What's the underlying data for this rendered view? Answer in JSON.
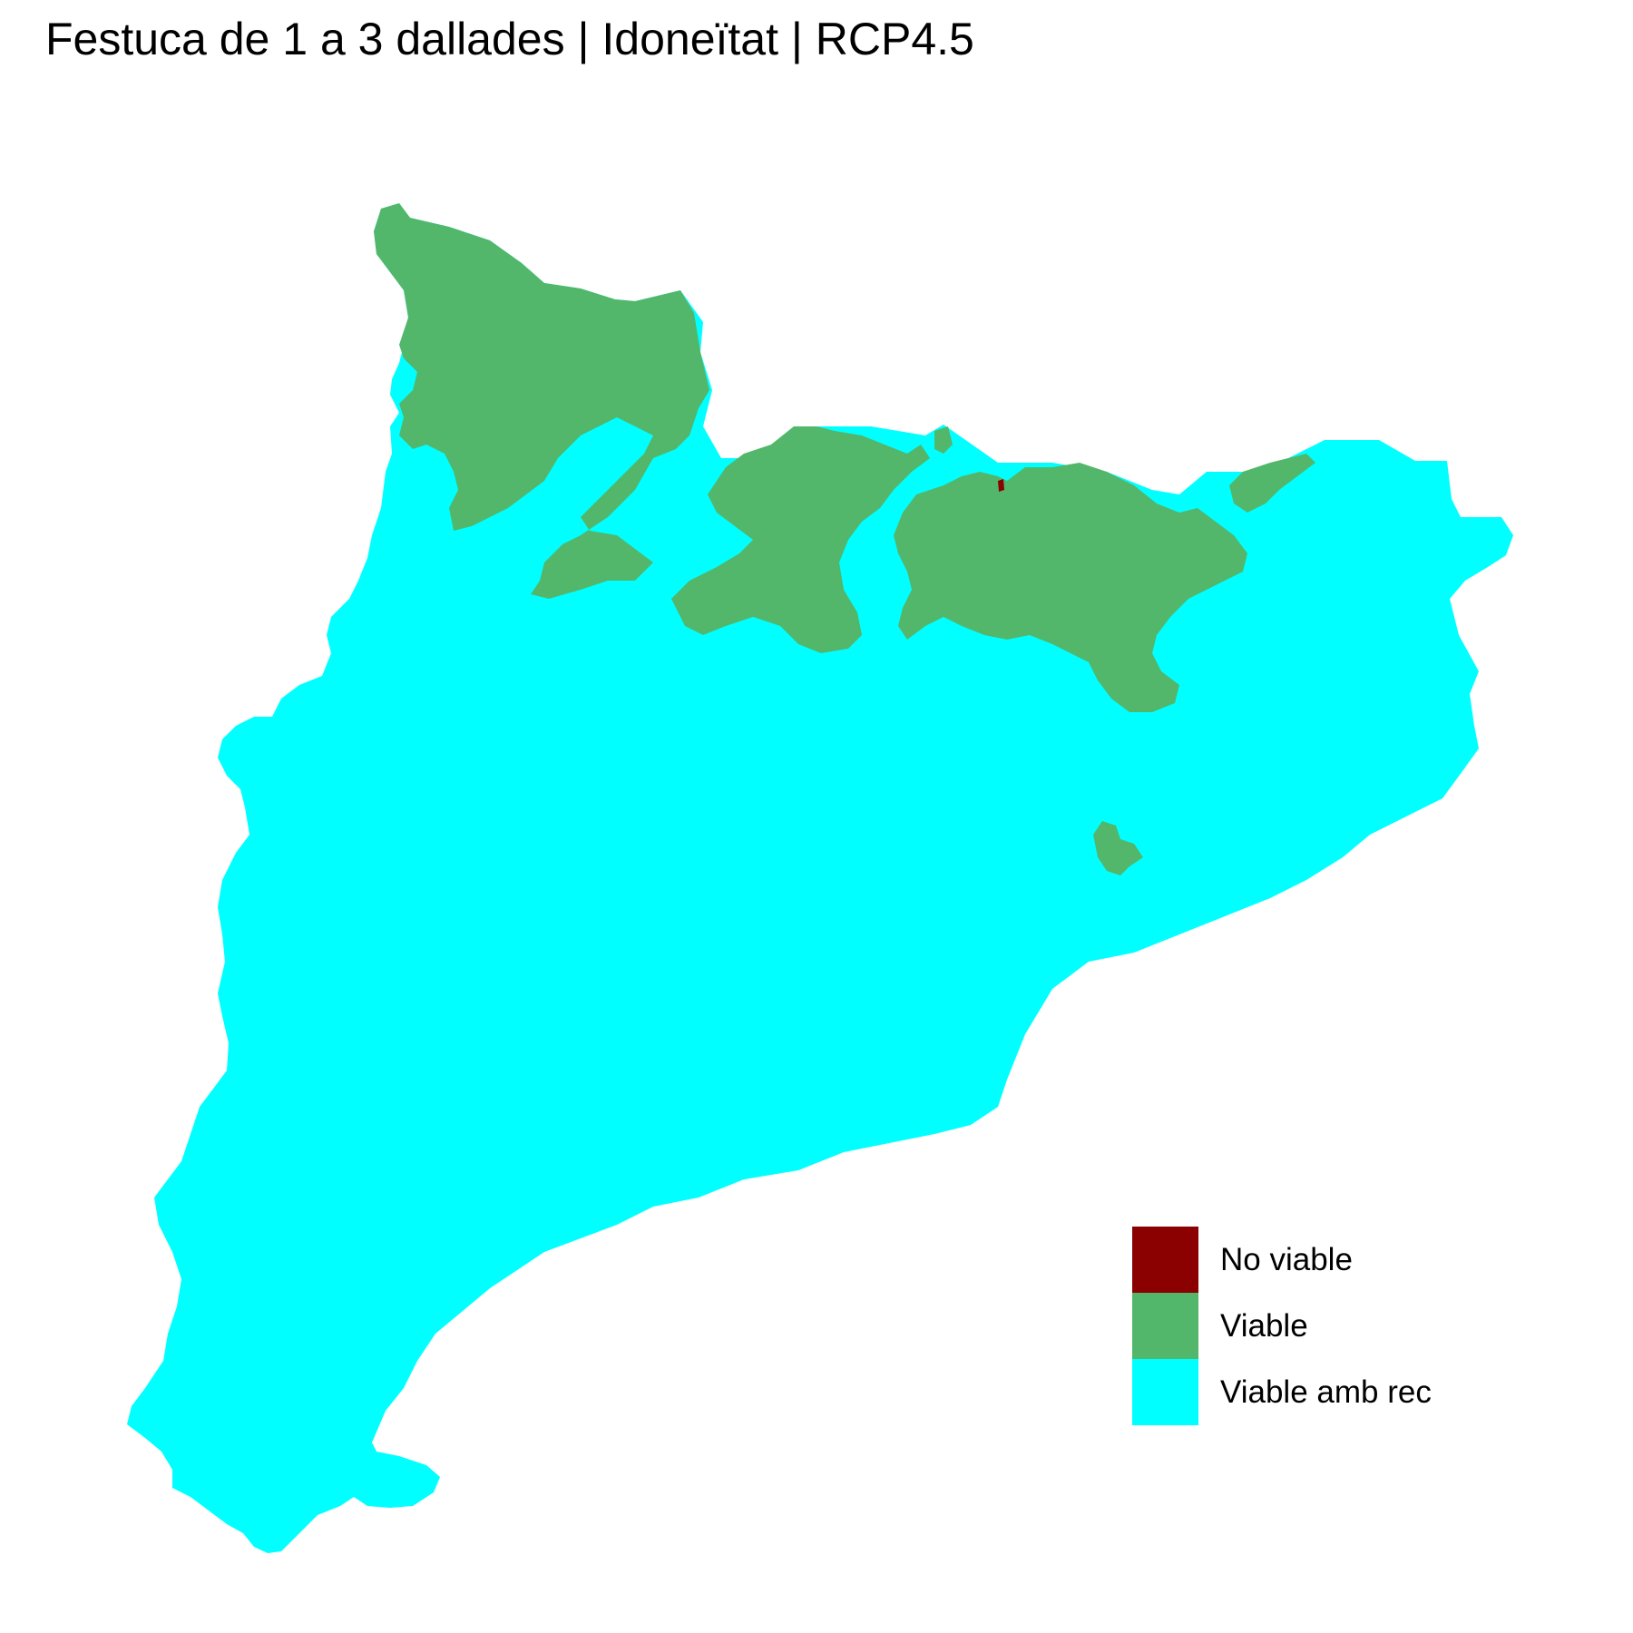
{
  "title": "Festuca de 1 a 3 dallades | Idoneïtat | RCP4.5",
  "legend": {
    "items": [
      {
        "label": "No viable",
        "color": "#8B0000"
      },
      {
        "label": "Viable",
        "color": "#52B76A"
      },
      {
        "label": "Viable amb rec",
        "color": "#00FFFF"
      }
    ]
  },
  "map": {
    "region": "Catalunya",
    "land_color": "#00FFFF",
    "viable_color": "#52B76A",
    "no_viable_color": "#8B0000"
  }
}
